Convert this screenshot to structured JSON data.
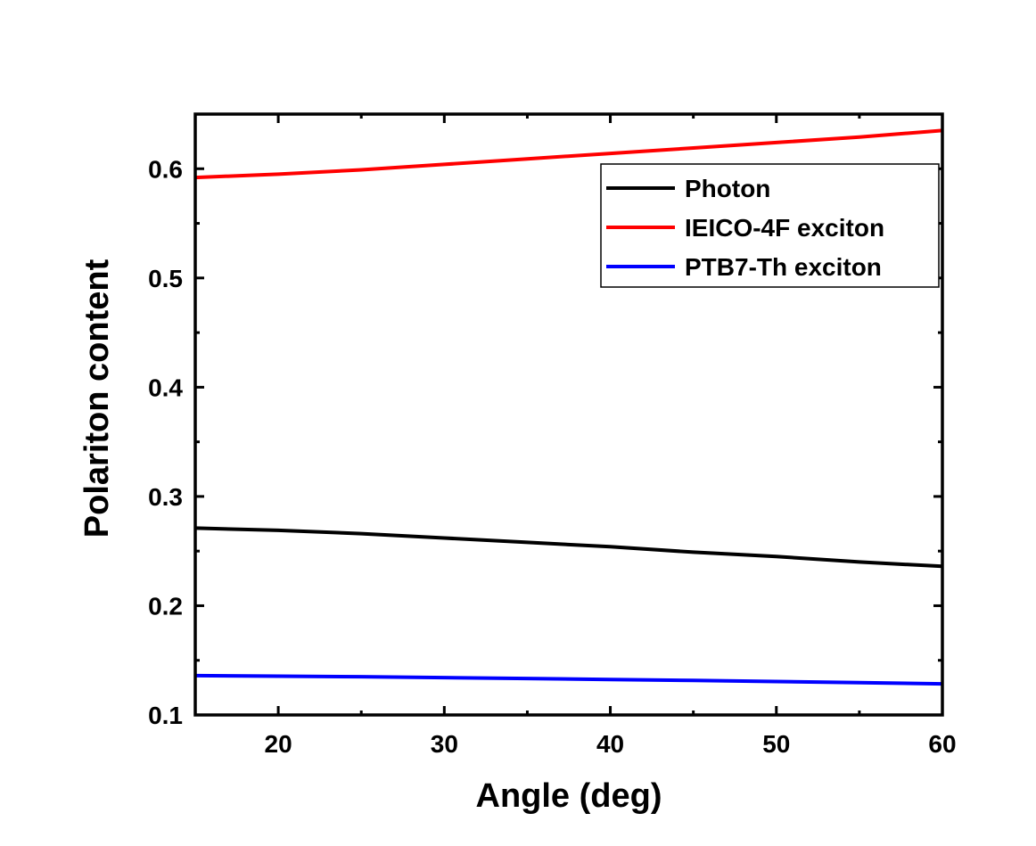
{
  "chart_data": {
    "type": "line",
    "title": "",
    "xlabel": "Angle (deg)",
    "ylabel": "Polariton content",
    "xlim": [
      15,
      60
    ],
    "ylim": [
      0.1,
      0.65
    ],
    "xticks": [
      20,
      30,
      40,
      50,
      60
    ],
    "yticks": [
      0.1,
      0.2,
      0.3,
      0.4,
      0.5,
      0.6
    ],
    "xtick_labels": [
      "20",
      "30",
      "40",
      "50",
      "60"
    ],
    "ytick_labels": [
      "0.1",
      "0.2",
      "0.3",
      "0.4",
      "0.5",
      "0.6"
    ],
    "grid": false,
    "legend_position": "top-right",
    "series": [
      {
        "name": "Photon",
        "color": "#000000",
        "x": [
          15,
          20,
          25,
          30,
          35,
          40,
          45,
          50,
          55,
          60
        ],
        "y": [
          0.271,
          0.269,
          0.266,
          0.262,
          0.258,
          0.254,
          0.249,
          0.245,
          0.24,
          0.236
        ]
      },
      {
        "name": "IEICO-4F exciton",
        "color": "#ff0000",
        "x": [
          15,
          20,
          25,
          30,
          35,
          40,
          45,
          50,
          55,
          60
        ],
        "y": [
          0.592,
          0.595,
          0.599,
          0.604,
          0.609,
          0.614,
          0.619,
          0.624,
          0.629,
          0.635
        ]
      },
      {
        "name": "PTB7-Th exciton",
        "color": "#0000ff",
        "x": [
          15,
          20,
          25,
          30,
          35,
          40,
          45,
          50,
          55,
          60
        ],
        "y": [
          0.136,
          0.1355,
          0.135,
          0.1342,
          0.1334,
          0.1325,
          0.1316,
          0.1306,
          0.1296,
          0.1285
        ]
      }
    ]
  }
}
